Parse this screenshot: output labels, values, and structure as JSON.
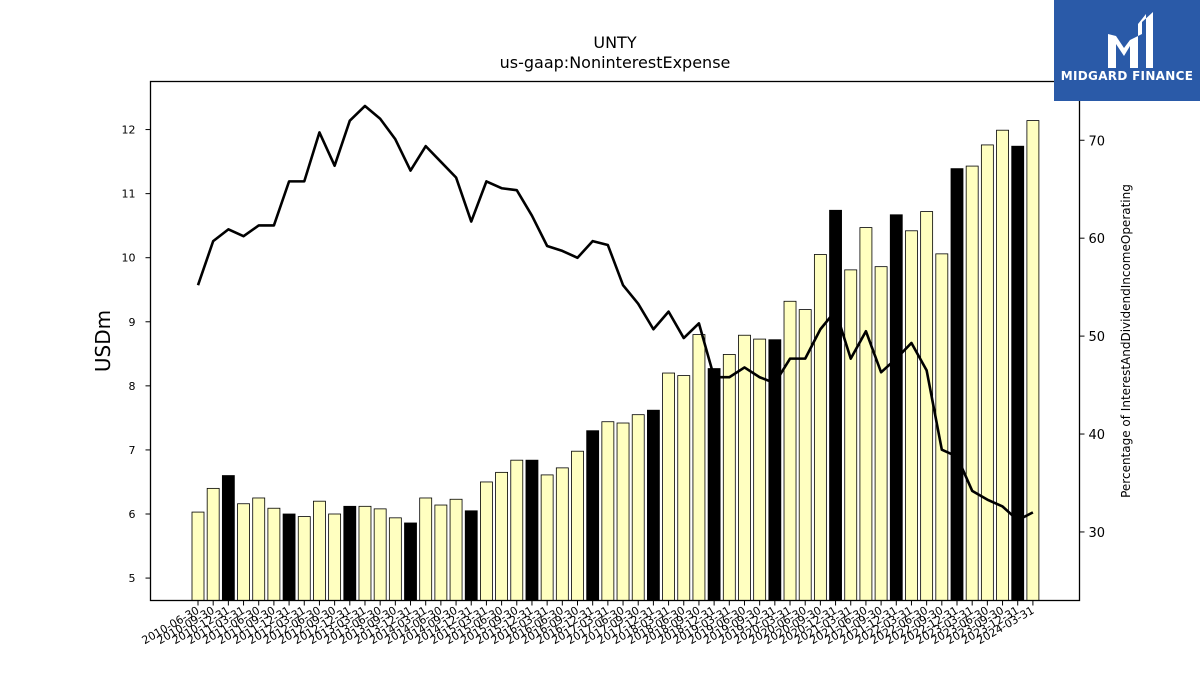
{
  "logo": {
    "text": "MIDGARD FINANCE",
    "icon": "midgard-logo-icon",
    "color": "#2a5aa8"
  },
  "chart_data": {
    "type": "bar",
    "title": "UNTY",
    "subtitle": "us-gaap:NoninterestExpense",
    "ylabel": "USDm",
    "y2label": "Percentage of InterestAndDividendIncomeOperating",
    "ylim": [
      4.65,
      12.75
    ],
    "y2lim": [
      23,
      76
    ],
    "yticks": [
      5,
      6,
      7,
      8,
      9,
      10,
      11,
      12
    ],
    "y2ticks": [
      30,
      40,
      50,
      60,
      70
    ],
    "bar_color": "#ffffc0",
    "highlight_color": "#000000",
    "line_color": "#000000",
    "categories": [
      "2010-06-30",
      "2010-09-30",
      "2010-12-31",
      "2011-03-31",
      "2011-06-30",
      "2011-09-30",
      "2011-12-31",
      "2012-03-31",
      "2012-06-30",
      "2012-09-30",
      "2012-12-31",
      "2013-03-31",
      "2013-06-30",
      "2013-09-30",
      "2013-12-31",
      "2014-03-31",
      "2014-06-30",
      "2014-09-30",
      "2014-12-31",
      "2015-03-31",
      "2015-06-30",
      "2015-09-30",
      "2015-12-31",
      "2016-03-31",
      "2016-06-30",
      "2016-09-30",
      "2016-12-31",
      "2017-03-31",
      "2017-06-30",
      "2017-09-30",
      "2017-12-31",
      "2018-03-31",
      "2018-06-30",
      "2018-09-30",
      "2018-12-31",
      "2019-03-31",
      "2019-06-30",
      "2019-09-30",
      "2019-12-31",
      "2020-03-31",
      "2020-06-30",
      "2020-09-30",
      "2020-12-31",
      "2021-03-31",
      "2021-06-30",
      "2021-09-30",
      "2021-12-31",
      "2022-03-31",
      "2022-06-30",
      "2022-09-30",
      "2022-12-31",
      "2023-03-31",
      "2023-06-30",
      "2023-09-30",
      "2023-12-31",
      "2024-03-31"
    ],
    "series": [
      {
        "values": [
          6.03,
          6.4,
          6.6,
          6.16,
          6.25,
          6.09,
          6.0,
          5.96,
          6.2,
          6.0,
          6.12,
          6.12,
          6.08,
          5.94,
          5.86,
          6.25,
          6.14,
          6.23,
          6.05,
          6.5,
          6.65,
          6.84,
          6.84,
          6.61,
          6.72,
          6.98,
          7.3,
          7.44,
          7.42,
          7.55,
          7.62,
          8.2,
          8.16,
          8.8,
          8.27,
          8.49,
          8.79,
          8.73,
          8.72,
          9.32,
          9.19,
          10.05,
          10.74,
          9.81,
          10.47,
          9.86,
          10.67,
          10.42,
          10.72,
          10.06,
          11.39,
          11.43,
          11.76,
          11.99,
          11.74,
          12.14
        ],
        "highlight": [
          false,
          false,
          true,
          false,
          false,
          false,
          true,
          false,
          false,
          false,
          true,
          false,
          false,
          false,
          true,
          false,
          false,
          false,
          true,
          false,
          false,
          false,
          true,
          false,
          false,
          false,
          true,
          false,
          false,
          false,
          true,
          false,
          false,
          false,
          true,
          false,
          false,
          false,
          true,
          false,
          false,
          false,
          true,
          false,
          false,
          false,
          true,
          false,
          false,
          false,
          true,
          false,
          false,
          false,
          true,
          false
        ]
      },
      {
        "values": [
          55.2,
          59.7,
          60.9,
          60.2,
          61.3,
          61.3,
          65.8,
          65.8,
          70.8,
          67.4,
          72.0,
          73.5,
          72.2,
          70.1,
          66.9,
          69.4,
          67.8,
          66.2,
          61.7,
          65.8,
          65.1,
          64.9,
          62.3,
          59.2,
          58.7,
          58.0,
          59.7,
          59.3,
          55.2,
          53.3,
          50.7,
          52.5,
          49.8,
          51.3,
          45.8,
          45.8,
          46.8,
          45.8,
          45.2,
          47.7,
          47.7,
          50.7,
          52.6,
          47.7,
          50.5,
          46.3,
          47.7,
          49.3,
          46.5,
          38.4,
          37.7,
          34.2,
          33.3,
          32.6,
          31.2,
          32.0
        ]
      }
    ],
    "legend": "none",
    "grid": false
  }
}
